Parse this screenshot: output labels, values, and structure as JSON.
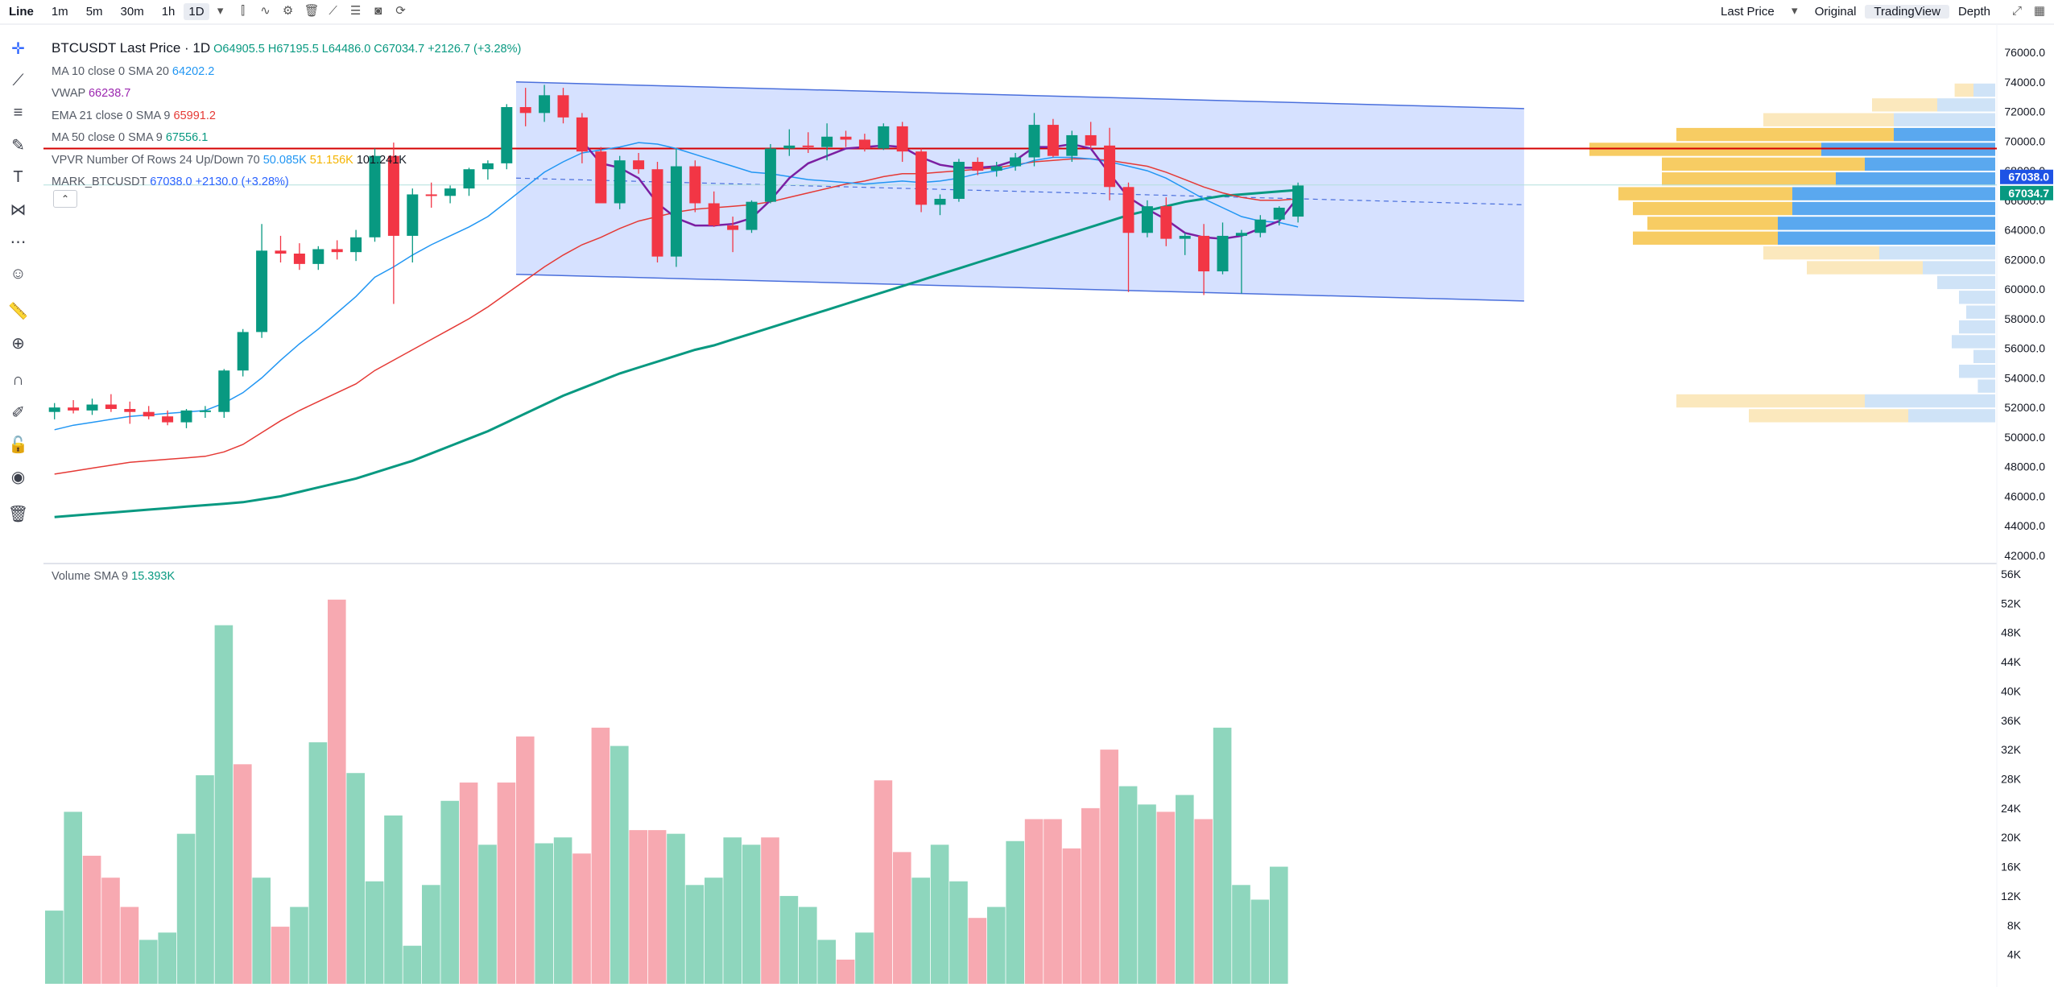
{
  "toolbar": {
    "chart_type": "Line",
    "intervals": [
      "1m",
      "5m",
      "30m",
      "1h",
      "1D"
    ],
    "selected_interval": "1D",
    "right": [
      "Last Price",
      "Original",
      "TradingView",
      "Depth"
    ]
  },
  "legend": {
    "symbol": "BTCUSDT Last Price · 1D",
    "ohlc": "O64905.5 H67195.5 L64486.0 C67034.7 +2126.7 (+3.28%)",
    "indicators": [
      {
        "label": "MA 10 close 0 SMA 20",
        "value": "64202.2",
        "color": "#2196f3"
      },
      {
        "label": "VWAP",
        "value": "66238.7",
        "color": "#9c27b0"
      },
      {
        "label": "EMA 21 close 0 SMA 9",
        "value": "65991.2",
        "color": "#e53935"
      },
      {
        "label": "MA 50 close 0 SMA 9",
        "value": "67556.1",
        "color": "#089981"
      }
    ],
    "vpvr": {
      "label": "VPVR Number Of Rows 24 Up/Down 70",
      "up": "50.085K",
      "down": "51.156K",
      "total": "101.241K"
    },
    "mark": {
      "label": "MARK_BTCUSDT",
      "value": "67038.0 +2130.0 (+3.28%)"
    },
    "volume": {
      "label": "Volume SMA 9",
      "value": "15.393K"
    }
  },
  "colors": {
    "up": "#089981",
    "down": "#f23645",
    "vol_up": "#8ed6bd",
    "vol_down": "#f7a9b1",
    "ma10": "#2196f3",
    "ema21": "#e53935",
    "ma50": "#089981",
    "vwap": "#7b1fa2",
    "channel": "#cfdcff"
  },
  "chart_data": [
    {
      "type": "candlestick",
      "title": "BTCUSDT Last Price · 1D",
      "ylim": [
        42000,
        76000
      ],
      "yticks": [
        42000,
        44000,
        46000,
        48000,
        50000,
        52000,
        54000,
        56000,
        58000,
        60000,
        62000,
        64000,
        66000,
        68000,
        70000,
        72000,
        74000,
        76000
      ],
      "ytick_labels": [
        "42000.0",
        "44000.0",
        "46000.0",
        "48000.0",
        "50000.0",
        "52000.0",
        "54000.0",
        "56000.0",
        "58000.0",
        "60000.0",
        "62000.0",
        "64000.0",
        "66000.0",
        "68000.0",
        "70000.0",
        "72000.0",
        "74000.0",
        "76000.0"
      ],
      "candles": [
        {
          "o": 51700,
          "h": 52300,
          "l": 51200,
          "c": 52000
        },
        {
          "o": 52000,
          "h": 52500,
          "l": 51600,
          "c": 51800
        },
        {
          "o": 51800,
          "h": 52600,
          "l": 51500,
          "c": 52200
        },
        {
          "o": 52200,
          "h": 52900,
          "l": 51700,
          "c": 51900
        },
        {
          "o": 51900,
          "h": 52400,
          "l": 50900,
          "c": 51700
        },
        {
          "o": 51700,
          "h": 52100,
          "l": 51200,
          "c": 51400
        },
        {
          "o": 51400,
          "h": 51800,
          "l": 50800,
          "c": 51000
        },
        {
          "o": 51000,
          "h": 51900,
          "l": 50600,
          "c": 51800
        },
        {
          "o": 51800,
          "h": 52100,
          "l": 51300,
          "c": 51800
        },
        {
          "o": 51700,
          "h": 54600,
          "l": 51300,
          "c": 54500
        },
        {
          "o": 54500,
          "h": 57300,
          "l": 54100,
          "c": 57100
        },
        {
          "o": 57100,
          "h": 64400,
          "l": 56700,
          "c": 62600
        },
        {
          "o": 62600,
          "h": 63600,
          "l": 61800,
          "c": 62400
        },
        {
          "o": 62400,
          "h": 63100,
          "l": 61300,
          "c": 61700
        },
        {
          "o": 61700,
          "h": 62900,
          "l": 61300,
          "c": 62700
        },
        {
          "o": 62700,
          "h": 63300,
          "l": 62000,
          "c": 62500
        },
        {
          "o": 62500,
          "h": 64000,
          "l": 61900,
          "c": 63500
        },
        {
          "o": 63500,
          "h": 69500,
          "l": 63200,
          "c": 69000
        },
        {
          "o": 69000,
          "h": 69900,
          "l": 59000,
          "c": 63600
        },
        {
          "o": 63600,
          "h": 66800,
          "l": 61800,
          "c": 66400
        },
        {
          "o": 66400,
          "h": 67200,
          "l": 65500,
          "c": 66300
        },
        {
          "o": 66300,
          "h": 67000,
          "l": 65800,
          "c": 66800
        },
        {
          "o": 66800,
          "h": 68200,
          "l": 66300,
          "c": 68100
        },
        {
          "o": 68100,
          "h": 68700,
          "l": 67400,
          "c": 68500
        },
        {
          "o": 68500,
          "h": 72500,
          "l": 68100,
          "c": 72300
        },
        {
          "o": 72300,
          "h": 73600,
          "l": 71000,
          "c": 71900
        },
        {
          "o": 71900,
          "h": 73800,
          "l": 71300,
          "c": 73100
        },
        {
          "o": 73100,
          "h": 73600,
          "l": 71200,
          "c": 71600
        },
        {
          "o": 71600,
          "h": 71900,
          "l": 68500,
          "c": 69300
        },
        {
          "o": 69300,
          "h": 69600,
          "l": 66000,
          "c": 65800
        },
        {
          "o": 65800,
          "h": 69000,
          "l": 65400,
          "c": 68700
        },
        {
          "o": 68700,
          "h": 69200,
          "l": 67800,
          "c": 68100
        },
        {
          "o": 68100,
          "h": 68600,
          "l": 61800,
          "c": 62200
        },
        {
          "o": 62200,
          "h": 69500,
          "l": 61500,
          "c": 68300
        },
        {
          "o": 68300,
          "h": 68700,
          "l": 65200,
          "c": 65800
        },
        {
          "o": 65800,
          "h": 66600,
          "l": 64200,
          "c": 64300
        },
        {
          "o": 64300,
          "h": 64900,
          "l": 62500,
          "c": 64000
        },
        {
          "o": 64000,
          "h": 66000,
          "l": 63800,
          "c": 65900
        },
        {
          "o": 65900,
          "h": 69800,
          "l": 65800,
          "c": 69500
        },
        {
          "o": 69500,
          "h": 70800,
          "l": 69000,
          "c": 69700
        },
        {
          "o": 69700,
          "h": 70600,
          "l": 69200,
          "c": 69600
        },
        {
          "o": 69600,
          "h": 71200,
          "l": 68700,
          "c": 70300
        },
        {
          "o": 70300,
          "h": 70700,
          "l": 69600,
          "c": 70100
        },
        {
          "o": 70100,
          "h": 70500,
          "l": 69300,
          "c": 69500
        },
        {
          "o": 69500,
          "h": 71200,
          "l": 69400,
          "c": 71000
        },
        {
          "o": 71000,
          "h": 71300,
          "l": 68600,
          "c": 69300
        },
        {
          "o": 69300,
          "h": 69500,
          "l": 65200,
          "c": 65700
        },
        {
          "o": 65700,
          "h": 66400,
          "l": 65000,
          "c": 66100
        },
        {
          "o": 66100,
          "h": 68800,
          "l": 65900,
          "c": 68600
        },
        {
          "o": 68600,
          "h": 68900,
          "l": 67700,
          "c": 68000
        },
        {
          "o": 68000,
          "h": 68600,
          "l": 67600,
          "c": 68300
        },
        {
          "o": 68300,
          "h": 69200,
          "l": 68000,
          "c": 68900
        },
        {
          "o": 68900,
          "h": 71900,
          "l": 68300,
          "c": 71100
        },
        {
          "o": 71100,
          "h": 71500,
          "l": 68900,
          "c": 69000
        },
        {
          "o": 69000,
          "h": 70700,
          "l": 68600,
          "c": 70400
        },
        {
          "o": 70400,
          "h": 71300,
          "l": 69500,
          "c": 69700
        },
        {
          "o": 69700,
          "h": 70900,
          "l": 66000,
          "c": 66900
        },
        {
          "o": 66900,
          "h": 67200,
          "l": 59800,
          "c": 63800
        },
        {
          "o": 63800,
          "h": 66000,
          "l": 63500,
          "c": 65600
        },
        {
          "o": 65600,
          "h": 66200,
          "l": 62900,
          "c": 63400
        },
        {
          "o": 63400,
          "h": 63800,
          "l": 62300,
          "c": 63600
        },
        {
          "o": 63600,
          "h": 64400,
          "l": 59600,
          "c": 61200
        },
        {
          "o": 61200,
          "h": 64500,
          "l": 61000,
          "c": 63600
        },
        {
          "o": 63600,
          "h": 64000,
          "l": 59700,
          "c": 63800
        },
        {
          "o": 63800,
          "h": 65000,
          "l": 63500,
          "c": 64700
        },
        {
          "o": 64700,
          "h": 65600,
          "l": 64300,
          "c": 65500
        },
        {
          "o": 64900,
          "h": 67200,
          "l": 64500,
          "c": 67000
        }
      ],
      "ma10": [
        50500,
        50800,
        51000,
        51200,
        51400,
        51500,
        51600,
        51700,
        51800,
        52300,
        53000,
        54000,
        55200,
        56300,
        57300,
        58400,
        59500,
        60800,
        61500,
        62300,
        63000,
        63600,
        64200,
        64900,
        65900,
        66900,
        67900,
        68600,
        69200,
        69400,
        69600,
        69900,
        69800,
        69500,
        69100,
        68700,
        68300,
        67900,
        67800,
        67600,
        67400,
        67300,
        67200,
        67100,
        67200,
        67300,
        67200,
        67300,
        67500,
        67800,
        68000,
        68300,
        68700,
        68900,
        68900,
        68800,
        68600,
        68300,
        68000,
        67500,
        66800,
        66100,
        65500,
        64900,
        64600,
        64500,
        64200
      ],
      "ma50": [
        44600,
        44700,
        44800,
        44900,
        45000,
        45100,
        45200,
        45300,
        45400,
        45500,
        45600,
        45800,
        46000,
        46300,
        46600,
        46900,
        47200,
        47600,
        48000,
        48400,
        48900,
        49400,
        49900,
        50400,
        51000,
        51600,
        52200,
        52800,
        53300,
        53800,
        54300,
        54700,
        55100,
        55500,
        55900,
        56200,
        56600,
        57000,
        57400,
        57800,
        58200,
        58600,
        59000,
        59400,
        59800,
        60200,
        60600,
        61000,
        61400,
        61800,
        62200,
        62600,
        63000,
        63400,
        63800,
        64200,
        64600,
        65000,
        65300,
        65600,
        65900,
        66100,
        66300,
        66400,
        66500,
        66600,
        66700
      ],
      "ema21": [
        47500,
        47700,
        47900,
        48100,
        48300,
        48400,
        48500,
        48600,
        48700,
        49000,
        49500,
        50300,
        51100,
        51800,
        52400,
        53000,
        53600,
        54500,
        55200,
        55900,
        56600,
        57300,
        58000,
        58800,
        59700,
        60600,
        61500,
        62300,
        63000,
        63500,
        64100,
        64600,
        64900,
        65200,
        65400,
        65500,
        65600,
        65700,
        65900,
        66200,
        66500,
        66800,
        67100,
        67300,
        67600,
        67800,
        67800,
        67900,
        68000,
        68100,
        68200,
        68400,
        68600,
        68700,
        68800,
        68800,
        68700,
        68500,
        68300,
        67900,
        67400,
        66900,
        66500,
        66200,
        66000,
        66000,
        66100
      ],
      "vwap": [
        null,
        null,
        null,
        null,
        null,
        null,
        null,
        null,
        null,
        null,
        null,
        null,
        null,
        null,
        null,
        null,
        null,
        null,
        null,
        null,
        null,
        null,
        null,
        null,
        null,
        null,
        null,
        null,
        70000,
        68500,
        68200,
        67500,
        65800,
        64800,
        64300,
        64300,
        64400,
        64800,
        66000,
        67500,
        68500,
        69000,
        69500,
        69600,
        69700,
        69600,
        68900,
        68400,
        68200,
        68200,
        68300,
        68700,
        69600,
        69600,
        69800,
        69500,
        67800,
        66200,
        65400,
        64700,
        63800,
        63500,
        63400,
        63600,
        64100,
        64600,
        66200
      ],
      "channel": {
        "upper": [
          [
            0,
            74000
          ],
          [
            100,
            72200
          ]
        ],
        "lower": [
          [
            0,
            61000
          ],
          [
            100,
            59200
          ]
        ],
        "start_index": 25,
        "end_index": 78
      },
      "horizontal_line": 69500,
      "mark_price": 67038.0,
      "last_price": 67034.7,
      "price_labels": [
        "67038.0",
        "67034.7"
      ],
      "volume_profile": [
        {
          "price": 73000,
          "up": 1.5,
          "down": 1.3
        },
        {
          "price": 72000,
          "up": 4,
          "down": 4.5
        },
        {
          "price": 71000,
          "up": 7,
          "down": 9
        },
        {
          "price": 70000,
          "up": 7,
          "down": 15
        },
        {
          "price": 69000,
          "up": 12,
          "down": 16
        },
        {
          "price": 68000,
          "up": 9,
          "down": 14
        },
        {
          "price": 67000,
          "up": 11,
          "down": 12
        },
        {
          "price": 66000,
          "up": 14,
          "down": 12
        },
        {
          "price": 65000,
          "up": 14,
          "down": 11
        },
        {
          "price": 64000,
          "up": 15,
          "down": 9
        },
        {
          "price": 63000,
          "up": 15,
          "down": 10
        },
        {
          "price": 62000,
          "up": 8,
          "down": 8
        },
        {
          "price": 61000,
          "up": 5,
          "down": 8
        },
        {
          "price": 60000,
          "up": 4,
          "down": 0
        },
        {
          "price": 59000,
          "up": 2.5,
          "down": 0
        },
        {
          "price": 58000,
          "up": 2,
          "down": 0
        },
        {
          "price": 57000,
          "up": 2.5,
          "down": 0
        },
        {
          "price": 56000,
          "up": 3,
          "down": 0
        },
        {
          "price": 55000,
          "up": 1.5,
          "down": 0
        },
        {
          "price": 54000,
          "up": 2.5,
          "down": 0
        },
        {
          "price": 53000,
          "up": 1.2,
          "down": 0
        },
        {
          "price": 52000,
          "up": 9,
          "down": 13
        },
        {
          "price": 51000,
          "up": 6,
          "down": 11
        },
        {
          "price": 50000,
          "up": 0,
          "down": 0
        }
      ]
    },
    {
      "type": "bar",
      "title": "Volume SMA 9",
      "ylim": [
        0,
        56000
      ],
      "yticks": [
        4000,
        8000,
        12000,
        16000,
        20000,
        24000,
        28000,
        32000,
        36000,
        40000,
        44000,
        48000,
        52000,
        56000
      ],
      "ytick_labels": [
        "4K",
        "8K",
        "12K",
        "16K",
        "20K",
        "24K",
        "28K",
        "32K",
        "36K",
        "40K",
        "44K",
        "48K",
        "52K",
        "56K"
      ],
      "values": [
        10000,
        23500,
        17500,
        14500,
        10500,
        6000,
        7000,
        20500,
        28500,
        49000,
        30000,
        14500,
        7800,
        10500,
        33000,
        52500,
        28800,
        14000,
        23000,
        5200,
        13500,
        25000,
        27500,
        19000,
        27500,
        33800,
        19200,
        20000,
        17800,
        35000,
        32500,
        21000,
        21000,
        20500,
        13500,
        14500,
        20000,
        19000,
        20000,
        12000,
        10500,
        6000,
        3300,
        7000,
        27800,
        18000,
        14500,
        19000,
        14000,
        9000,
        10500,
        19500,
        22500,
        22500,
        18500,
        24000,
        32000,
        27000,
        24500,
        23500,
        25800,
        22500,
        35000,
        13500,
        11500,
        16000
      ],
      "directions": [
        "up",
        "up",
        "down",
        "down",
        "down",
        "up",
        "up",
        "up",
        "up",
        "up",
        "down",
        "up",
        "down",
        "up",
        "up",
        "down",
        "up",
        "up",
        "up",
        "up",
        "up",
        "up",
        "down",
        "up",
        "down",
        "down",
        "up",
        "up",
        "down",
        "down",
        "up",
        "down",
        "down",
        "up",
        "up",
        "up",
        "up",
        "up",
        "down",
        "up",
        "up",
        "up",
        "down",
        "up",
        "down",
        "down",
        "up",
        "up",
        "up",
        "down",
        "up",
        "up",
        "down",
        "down",
        "down",
        "down",
        "down",
        "up",
        "up",
        "down",
        "up",
        "down",
        "up",
        "up",
        "up",
        "up"
      ]
    }
  ]
}
